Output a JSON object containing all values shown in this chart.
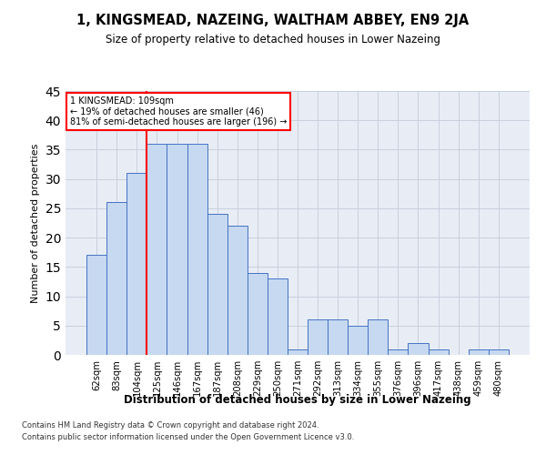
{
  "title": "1, KINGSMEAD, NAZEING, WALTHAM ABBEY, EN9 2JA",
  "subtitle": "Size of property relative to detached houses in Lower Nazeing",
  "xlabel": "Distribution of detached houses by size in Lower Nazeing",
  "ylabel": "Number of detached properties",
  "categories": [
    "62sqm",
    "83sqm",
    "104sqm",
    "125sqm",
    "146sqm",
    "167sqm",
    "187sqm",
    "208sqm",
    "229sqm",
    "250sqm",
    "271sqm",
    "292sqm",
    "313sqm",
    "334sqm",
    "355sqm",
    "376sqm",
    "396sqm",
    "417sqm",
    "438sqm",
    "459sqm",
    "480sqm"
  ],
  "values": [
    17,
    26,
    31,
    36,
    36,
    36,
    24,
    22,
    14,
    13,
    1,
    6,
    6,
    5,
    6,
    1,
    2,
    1,
    0,
    1,
    1
  ],
  "bar_color": "#c6d9f1",
  "bar_edge_color": "#4472c4",
  "red_line_x": 2.5,
  "annotation_line1": "1 KINGSMEAD: 109sqm",
  "annotation_line2": "← 19% of detached houses are smaller (46)",
  "annotation_line3": "81% of semi-detached houses are larger (196) →",
  "annotation_box_color": "#ffffff",
  "annotation_border_color": "#ff0000",
  "ylim": [
    0,
    45
  ],
  "yticks": [
    0,
    5,
    10,
    15,
    20,
    25,
    30,
    35,
    40,
    45
  ],
  "grid_color": "#c8d0de",
  "footnote1": "Contains HM Land Registry data © Crown copyright and database right 2024.",
  "footnote2": "Contains public sector information licensed under the Open Government Licence v3.0.",
  "background_color": "#e8edf5"
}
